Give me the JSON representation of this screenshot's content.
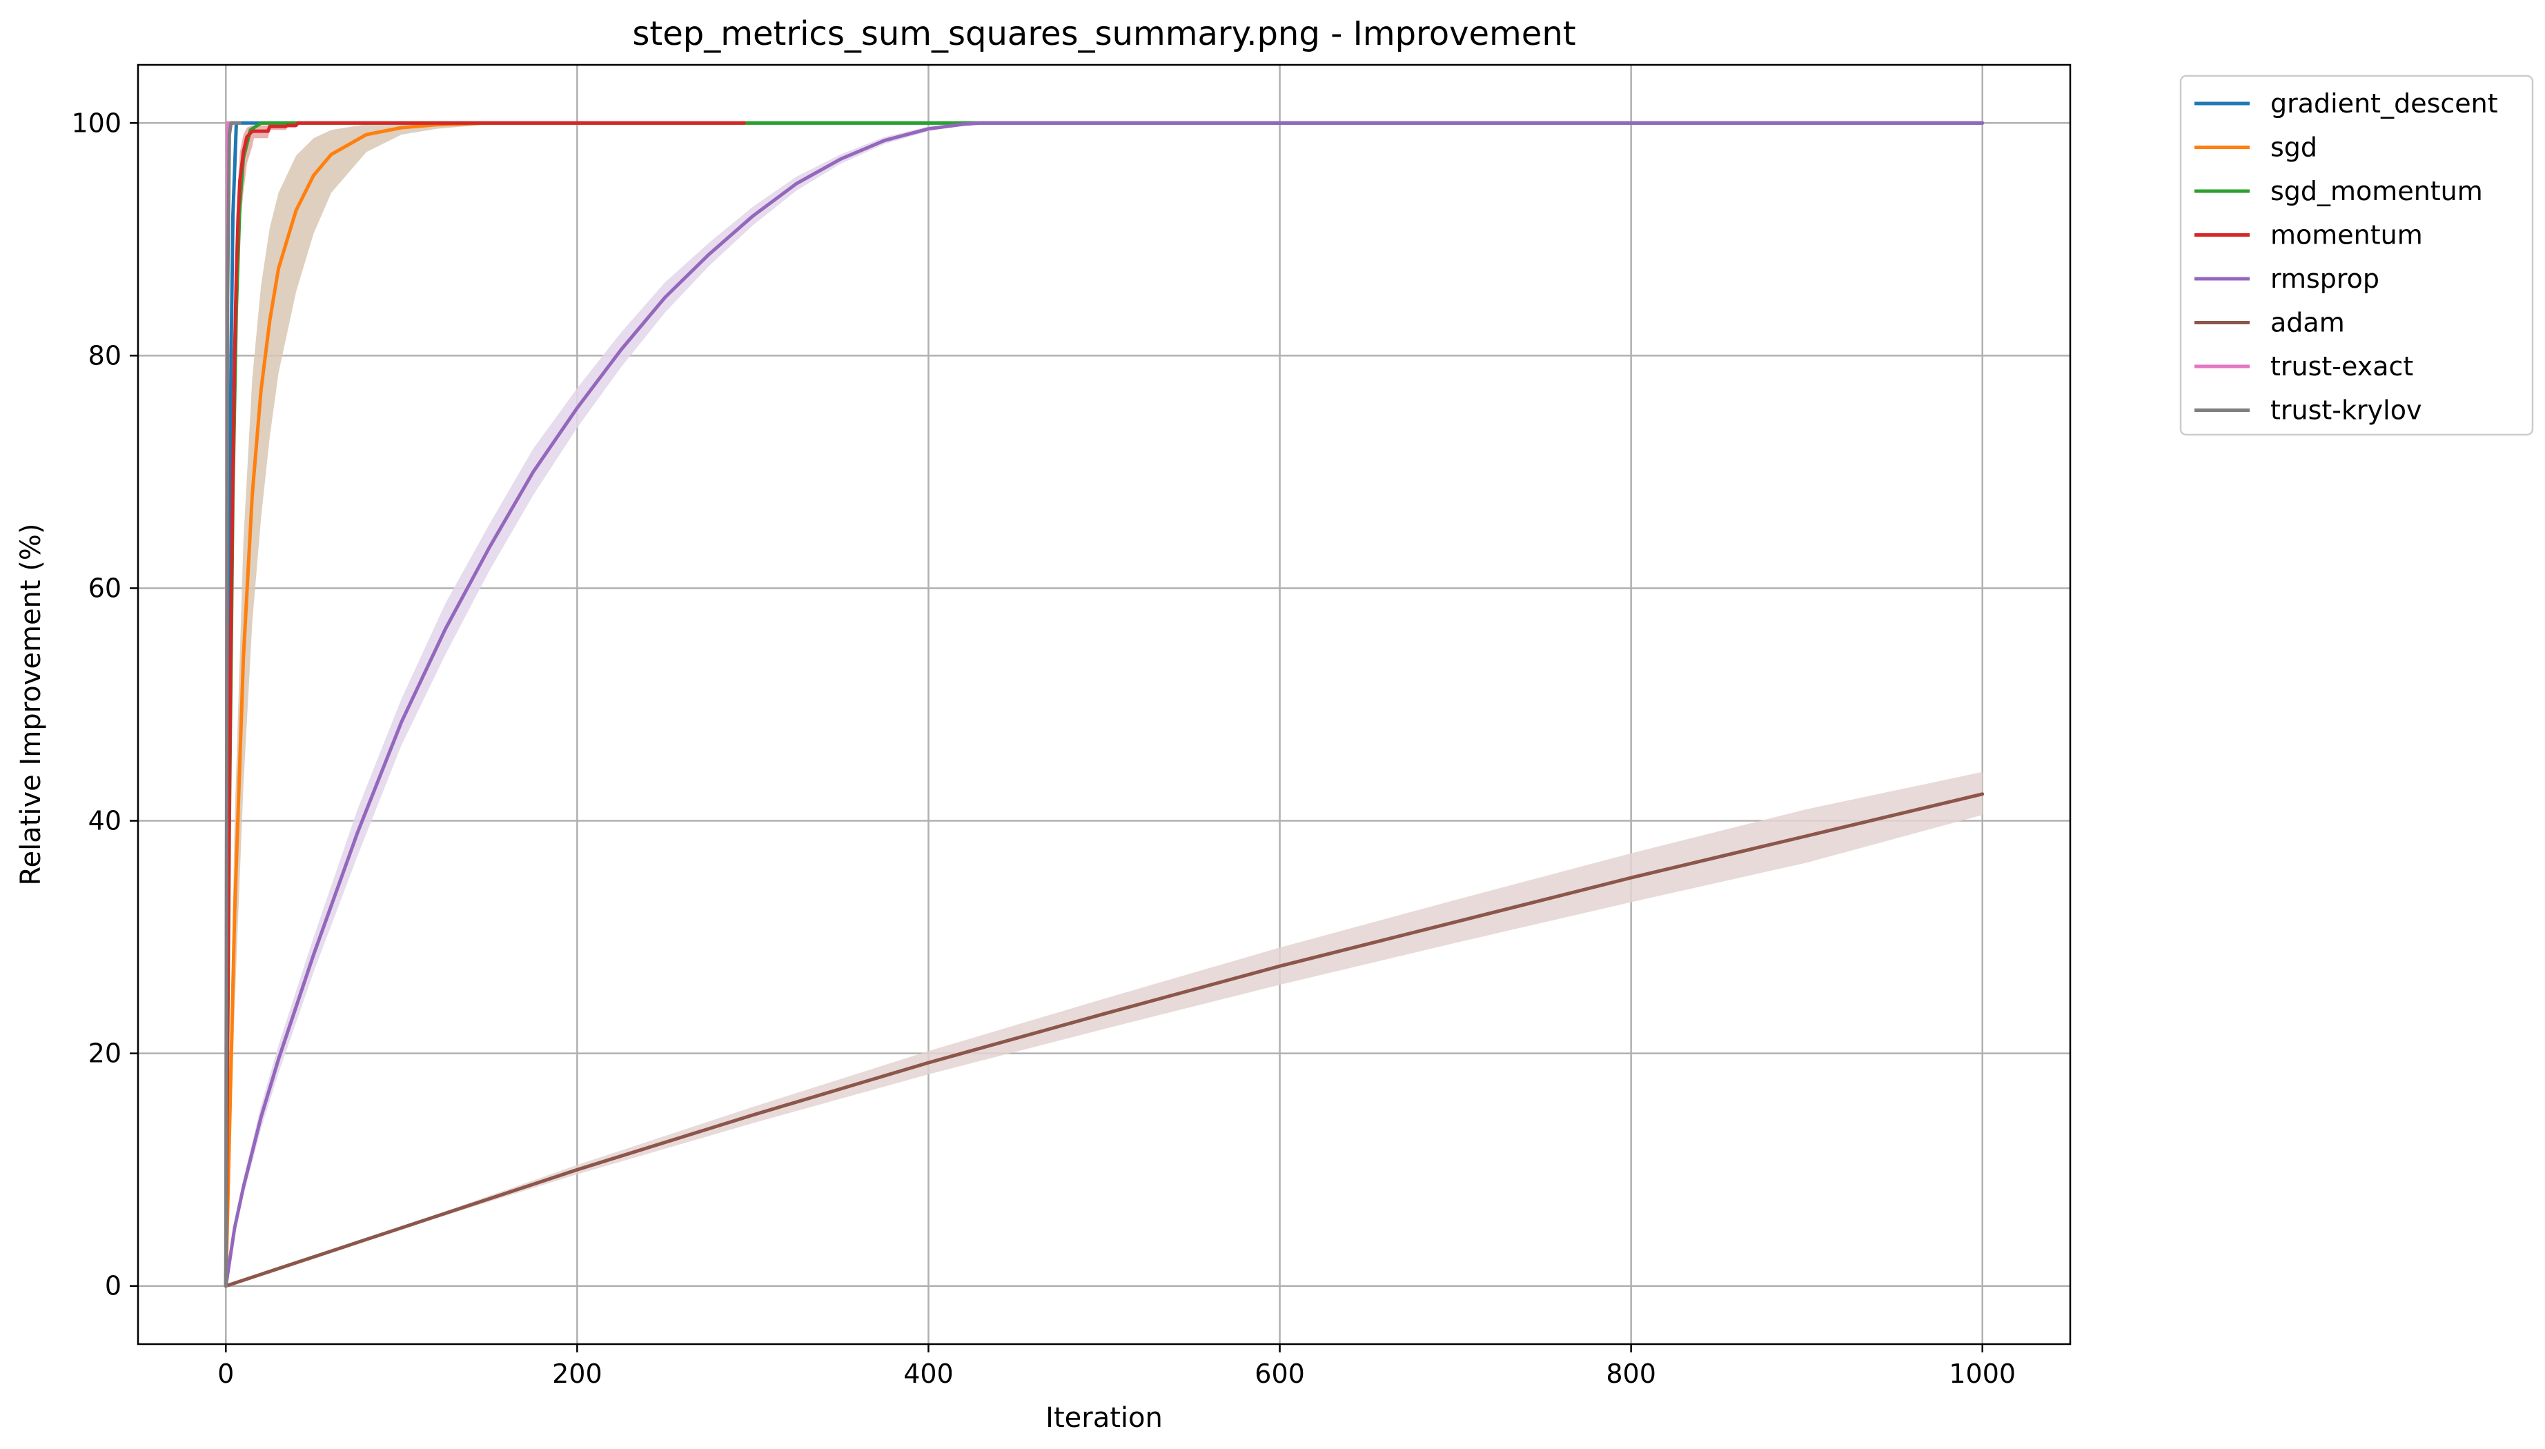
{
  "chart_data": {
    "type": "line",
    "title": "step_metrics_sum_squares_summary.png - Improvement",
    "xlabel": "Iteration",
    "ylabel": "Relative Improvement (%)",
    "xlim": [
      -50,
      1050
    ],
    "ylim": [
      -5,
      105
    ],
    "xticks": [
      0,
      200,
      400,
      600,
      800,
      1000
    ],
    "yticks": [
      0,
      20,
      40,
      60,
      80,
      100
    ],
    "grid": true,
    "legend_position": "outside top-right",
    "series": [
      {
        "name": "gradient_descent",
        "color": "#1f77b4",
        "x": [
          0,
          1,
          2,
          3,
          4,
          6,
          1000
        ],
        "y": [
          0,
          35,
          62,
          80,
          92,
          100,
          100
        ]
      },
      {
        "name": "sgd",
        "color": "#ff7f0e",
        "band_color": "#d8c7b4",
        "x": [
          0,
          5,
          10,
          15,
          20,
          25,
          30,
          40,
          50,
          60,
          80,
          100,
          120,
          150,
          200,
          300
        ],
        "y": [
          0,
          32,
          54,
          68,
          77,
          83,
          87.5,
          92.5,
          95.5,
          97.3,
          99,
          99.6,
          99.85,
          100,
          100,
          100
        ],
        "y_lower": [
          0,
          24,
          43,
          57,
          66,
          73,
          78.5,
          85.5,
          90.5,
          94,
          97.5,
          99,
          99.5,
          99.9,
          100,
          100
        ],
        "y_upper": [
          0,
          40,
          64,
          78,
          86,
          91,
          94,
          97.2,
          98.7,
          99.4,
          99.9,
          100,
          100,
          100,
          100,
          100
        ]
      },
      {
        "name": "sgd_momentum",
        "color": "#2ca02c",
        "x": [
          0,
          2,
          4,
          6,
          8,
          10,
          14,
          20,
          1000
        ],
        "y": [
          0,
          40,
          68,
          84,
          93,
          97,
          99.4,
          100,
          100
        ]
      },
      {
        "name": "momentum",
        "color": "#d62728",
        "band_color": "#e8a4a4",
        "x": [
          0,
          1,
          2,
          3,
          4,
          5,
          6,
          7,
          8,
          10,
          12,
          15,
          16,
          24,
          25,
          34,
          35,
          40,
          41,
          100,
          200,
          295
        ],
        "y": [
          0,
          22,
          42,
          58,
          70,
          80,
          87,
          92,
          95,
          97.5,
          98.8,
          99.3,
          99.3,
          99.3,
          99.7,
          99.7,
          99.8,
          99.8,
          100,
          100,
          100,
          100
        ],
        "y_lower": [
          0,
          18,
          37,
          53,
          65,
          75,
          82,
          87,
          91,
          94,
          96.5,
          98,
          98.7,
          98.7,
          99.4,
          99.4,
          99.6,
          99.6,
          100,
          100,
          100,
          100
        ],
        "y_upper": [
          0,
          26,
          47,
          63,
          75,
          85,
          91,
          95,
          97.5,
          99,
          99.6,
          99.8,
          99.8,
          99.8,
          99.9,
          99.9,
          99.9,
          99.9,
          100,
          100,
          100,
          100
        ]
      },
      {
        "name": "rmsprop",
        "color": "#9467bd",
        "band_color": "#e2d6ea",
        "x": [
          0,
          5,
          10,
          20,
          30,
          50,
          75,
          100,
          125,
          150,
          175,
          200,
          225,
          250,
          275,
          300,
          325,
          350,
          375,
          400,
          420,
          430,
          500,
          600,
          700,
          800,
          900,
          1000
        ],
        "y": [
          0,
          5,
          8.5,
          14.5,
          19.5,
          28.5,
          39,
          48.5,
          56.5,
          63.5,
          70,
          75.5,
          80.5,
          85,
          88.7,
          92,
          94.8,
          96.9,
          98.5,
          99.5,
          99.9,
          100,
          100,
          100,
          100,
          100,
          100,
          100
        ],
        "y_lower": [
          0,
          4.5,
          7.8,
          13.5,
          18.3,
          27,
          37,
          46.5,
          54.3,
          61.5,
          68,
          73.8,
          79,
          83.7,
          87.7,
          91.2,
          94.2,
          96.5,
          98.2,
          99.3,
          99.8,
          100,
          100,
          100,
          100,
          100,
          100,
          100
        ],
        "y_upper": [
          0,
          5.5,
          9.2,
          15.5,
          20.7,
          30,
          41,
          50.5,
          58.7,
          65.5,
          72,
          77.2,
          82,
          86.3,
          89.7,
          92.8,
          95.4,
          97.3,
          98.8,
          99.7,
          100,
          100,
          100,
          100,
          100,
          100,
          100,
          100
        ]
      },
      {
        "name": "adam",
        "color": "#8c564b",
        "band_color": "#e3d3d1",
        "x": [
          0,
          100,
          200,
          300,
          400,
          500,
          600,
          700,
          800,
          900,
          1000
        ],
        "y": [
          0,
          5,
          10,
          14.7,
          19.2,
          23.4,
          27.5,
          31.3,
          35.1,
          38.7,
          42.3
        ],
        "y_lower": [
          0,
          4.9,
          9.6,
          14,
          18.2,
          22.1,
          25.9,
          29.5,
          33,
          36.4,
          40.5
        ],
        "y_upper": [
          0,
          5.1,
          10.4,
          15.4,
          20.2,
          24.7,
          29.1,
          33.2,
          37.2,
          41,
          44.2
        ]
      },
      {
        "name": "trust-exact",
        "color": "#e377c2",
        "x": [
          0,
          1,
          2,
          3,
          4,
          5,
          6
        ],
        "y": [
          0,
          100,
          100,
          100,
          100,
          100,
          100
        ]
      },
      {
        "name": "trust-krylov",
        "color": "#7f7f7f",
        "x": [
          0,
          1,
          2,
          3,
          4,
          5,
          6,
          7,
          8
        ],
        "y": [
          0,
          85,
          99,
          100,
          100,
          100,
          100,
          100,
          100
        ]
      }
    ]
  }
}
